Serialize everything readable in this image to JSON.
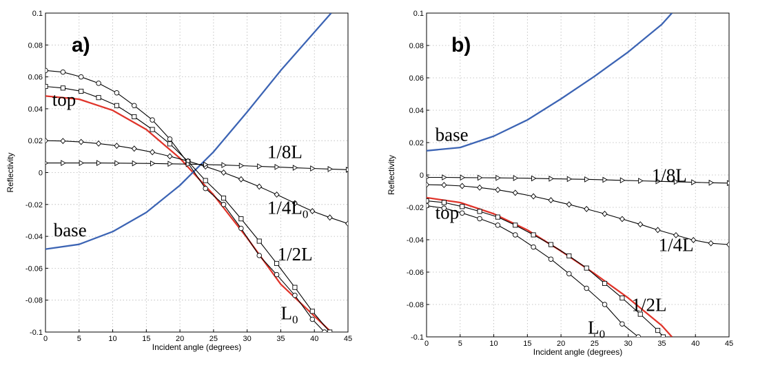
{
  "chart_data": [
    {
      "type": "line",
      "panel_label": "a)",
      "xlabel": "Incident angle (degrees)",
      "ylabel": "Reflectivity",
      "xlim": [
        0,
        45
      ],
      "ylim": [
        -0.1,
        0.1
      ],
      "xticks": [
        0,
        5,
        10,
        15,
        20,
        25,
        30,
        35,
        40,
        45
      ],
      "yticks": [
        -0.1,
        -0.08,
        -0.06,
        -0.04,
        -0.02,
        0,
        0.02,
        0.04,
        0.06,
        0.08,
        0.1
      ],
      "grid": true,
      "series": [
        {
          "key": "top",
          "color": "#e0342a",
          "marker": "none",
          "x": [
            0,
            5,
            10,
            15,
            20,
            25,
            30,
            35,
            40,
            42.5
          ],
          "y": [
            0.048,
            0.046,
            0.039,
            0.027,
            0.009,
            -0.014,
            -0.041,
            -0.07,
            -0.09,
            -0.1
          ]
        },
        {
          "key": "base",
          "color": "#3c64b4",
          "marker": "none",
          "x": [
            0,
            5,
            10,
            15,
            20,
            25,
            30,
            35,
            40,
            42.5
          ],
          "y": [
            -0.048,
            -0.045,
            -0.037,
            -0.025,
            -0.008,
            0.013,
            0.038,
            0.064,
            0.088,
            0.1
          ]
        },
        {
          "key": "L0",
          "color": "#000000",
          "marker": "circle",
          "x": [
            0,
            2.6,
            5.3,
            7.9,
            10.6,
            13.2,
            15.9,
            18.5,
            21.2,
            23.8,
            26.5,
            29.1,
            31.8,
            34.4,
            37.1,
            39.7,
            41.5
          ],
          "y": [
            0.064,
            0.063,
            0.06,
            0.056,
            0.05,
            0.042,
            0.033,
            0.021,
            0.006,
            -0.01,
            -0.02,
            -0.035,
            -0.052,
            -0.064,
            -0.077,
            -0.092,
            -0.1
          ]
        },
        {
          "key": "half",
          "color": "#000000",
          "marker": "square",
          "x": [
            0,
            2.6,
            5.3,
            7.9,
            10.6,
            13.2,
            15.9,
            18.5,
            21.2,
            23.8,
            26.5,
            29.1,
            31.8,
            34.4,
            37.1,
            39.7,
            42.3
          ],
          "y": [
            0.054,
            0.053,
            0.051,
            0.047,
            0.042,
            0.035,
            0.027,
            0.018,
            0.007,
            -0.005,
            -0.016,
            -0.029,
            -0.043,
            -0.057,
            -0.072,
            -0.087,
            -0.1
          ]
        },
        {
          "key": "quarter",
          "color": "#000000",
          "marker": "diamond",
          "x": [
            0,
            2.6,
            5.3,
            7.9,
            10.6,
            13.2,
            15.9,
            18.5,
            21.2,
            23.8,
            26.5,
            29.1,
            31.8,
            34.4,
            37.1,
            39.7,
            42.3,
            45
          ],
          "y": [
            0.02,
            0.0198,
            0.0192,
            0.0182,
            0.0168,
            0.015,
            0.0128,
            0.0102,
            0.0072,
            0.0038,
            0.0,
            -0.0042,
            -0.0088,
            -0.0138,
            -0.0192,
            -0.0242,
            -0.0282,
            -0.032
          ]
        },
        {
          "key": "eighth",
          "color": "#000000",
          "marker": "triangle",
          "x": [
            0,
            2.6,
            5.3,
            7.9,
            10.6,
            13.2,
            15.9,
            18.5,
            21.2,
            23.8,
            26.5,
            29.1,
            31.8,
            34.4,
            37.1,
            39.7,
            42.3,
            45
          ],
          "y": [
            0.006,
            0.006,
            0.006,
            0.006,
            0.0059,
            0.0058,
            0.0057,
            0.0055,
            0.0053,
            0.005,
            0.0047,
            0.0043,
            0.0039,
            0.0035,
            0.003,
            0.0026,
            0.0022,
            0.0018
          ]
        }
      ],
      "annotations": [
        {
          "key": "top",
          "text": "top",
          "sub": "",
          "x": 1,
          "y": 0.042
        },
        {
          "key": "base",
          "text": "base",
          "sub": "",
          "x": 1.2,
          "y": -0.04
        },
        {
          "key": "eighth",
          "text": "1/8L",
          "sub": "",
          "x": 33,
          "y": 0.009
        },
        {
          "key": "quarter",
          "text": "1/4L",
          "sub": "0",
          "x": 33,
          "y": -0.026
        },
        {
          "key": "half",
          "text": "1/2L",
          "sub": "",
          "x": 34.5,
          "y": -0.055
        },
        {
          "key": "L0",
          "text": "L",
          "sub": "0",
          "x": 35,
          "y": -0.092
        }
      ]
    },
    {
      "type": "line",
      "panel_label": "b)",
      "xlabel": "Incident angle (degrees)",
      "ylabel": "Reflectivity",
      "xlim": [
        0,
        45
      ],
      "ylim": [
        -0.1,
        0.1
      ],
      "xticks": [
        0,
        5,
        10,
        15,
        20,
        25,
        30,
        35,
        40,
        45
      ],
      "yticks": [
        -0.1,
        -0.08,
        -0.06,
        -0.04,
        -0.02,
        0,
        0.02,
        0.04,
        0.06,
        0.08,
        0.1
      ],
      "grid": true,
      "series": [
        {
          "key": "base",
          "color": "#3c64b4",
          "marker": "none",
          "x": [
            0,
            5,
            10,
            15,
            20,
            25,
            30,
            35,
            36.5
          ],
          "y": [
            0.015,
            0.017,
            0.024,
            0.034,
            0.047,
            0.061,
            0.076,
            0.093,
            0.1
          ]
        },
        {
          "key": "top",
          "color": "#e0342a",
          "marker": "none",
          "x": [
            0,
            5,
            10,
            15,
            20,
            25,
            30,
            35,
            36.5
          ],
          "y": [
            -0.014,
            -0.017,
            -0.024,
            -0.034,
            -0.047,
            -0.061,
            -0.076,
            -0.093,
            -0.1
          ]
        },
        {
          "key": "L0",
          "color": "#000000",
          "marker": "circle",
          "x": [
            0,
            2.6,
            5.3,
            7.9,
            10.6,
            13.2,
            15.9,
            18.5,
            21.2,
            23.8,
            26.5,
            29.1,
            31.5
          ],
          "y": [
            -0.019,
            -0.0205,
            -0.0235,
            -0.027,
            -0.031,
            -0.037,
            -0.0445,
            -0.052,
            -0.061,
            -0.07,
            -0.08,
            -0.092,
            -0.1
          ]
        },
        {
          "key": "half",
          "color": "#000000",
          "marker": "square",
          "x": [
            0,
            2.6,
            5.3,
            7.9,
            10.6,
            13.2,
            15.9,
            18.5,
            21.2,
            23.8,
            26.5,
            29.1,
            31.8,
            34.4,
            35.2
          ],
          "y": [
            -0.016,
            -0.017,
            -0.0195,
            -0.0225,
            -0.026,
            -0.031,
            -0.037,
            -0.043,
            -0.05,
            -0.0575,
            -0.067,
            -0.076,
            -0.086,
            -0.096,
            -0.1
          ]
        },
        {
          "key": "quarter",
          "color": "#000000",
          "marker": "diamond",
          "x": [
            0,
            2.6,
            5.3,
            7.9,
            10.6,
            13.2,
            15.9,
            18.5,
            21.2,
            23.8,
            26.5,
            29.1,
            31.8,
            34.4,
            37.1,
            39.7,
            42.3,
            45
          ],
          "y": [
            -0.006,
            -0.0062,
            -0.0068,
            -0.0078,
            -0.0092,
            -0.011,
            -0.0132,
            -0.0156,
            -0.0182,
            -0.021,
            -0.024,
            -0.0272,
            -0.0305,
            -0.034,
            -0.0372,
            -0.0402,
            -0.0422,
            -0.043
          ]
        },
        {
          "key": "eighth",
          "color": "#000000",
          "marker": "triangle",
          "x": [
            0,
            2.6,
            5.3,
            7.9,
            10.6,
            13.2,
            15.9,
            18.5,
            21.2,
            23.8,
            26.5,
            29.1,
            31.8,
            34.4,
            37.1,
            39.7,
            42.3,
            45
          ],
          "y": [
            -0.0015,
            -0.0015,
            -0.0016,
            -0.0017,
            -0.0018,
            -0.0019,
            -0.0021,
            -0.0023,
            -0.0025,
            -0.0027,
            -0.003,
            -0.0033,
            -0.0036,
            -0.0039,
            -0.0042,
            -0.0045,
            -0.0048,
            -0.005
          ]
        }
      ],
      "annotations": [
        {
          "key": "base",
          "text": "base",
          "sub": "",
          "x": 1.3,
          "y": 0.021
        },
        {
          "key": "top",
          "text": "top",
          "sub": "",
          "x": 1.3,
          "y": -0.027
        },
        {
          "key": "eighth",
          "text": "1/8L",
          "sub": "",
          "x": 33.5,
          "y": -0.004
        },
        {
          "key": "quarter",
          "text": "1/4L",
          "sub": "",
          "x": 34.5,
          "y": -0.047
        },
        {
          "key": "half",
          "text": "1/2L",
          "sub": "",
          "x": 30.5,
          "y": -0.084
        },
        {
          "key": "L0",
          "text": "L",
          "sub": "0",
          "x": 24,
          "y": -0.098
        }
      ]
    }
  ]
}
